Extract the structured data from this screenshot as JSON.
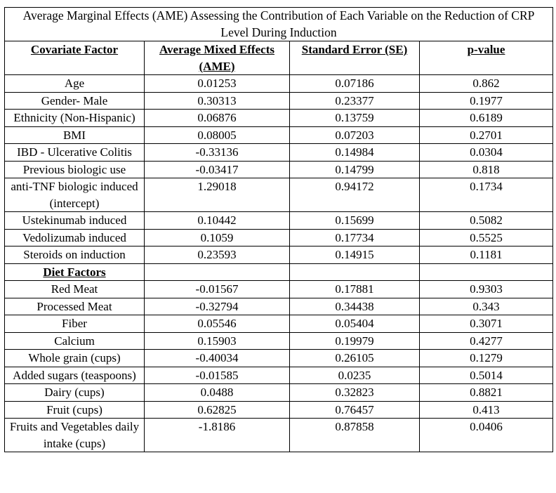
{
  "table": {
    "title": "Average Marginal Effects (AME) Assessing the Contribution of Each Variable on the Reduction of CRP Level During Induction",
    "headers": [
      "Covariate Factor",
      "Average Mixed Effects (AME)",
      "Standard Error (SE)",
      "p-value"
    ],
    "rows": [
      {
        "factor": "Age",
        "ame": "0.01253",
        "se": "0.07186",
        "p": "0.862"
      },
      {
        "factor": "Gender- Male",
        "ame": "0.30313",
        "se": "0.23377",
        "p": "0.1977"
      },
      {
        "factor": "Ethnicity (Non-Hispanic)",
        "ame": "0.06876",
        "se": "0.13759",
        "p": "0.6189"
      },
      {
        "factor": "BMI",
        "ame": "0.08005",
        "se": "0.07203",
        "p": "0.2701"
      },
      {
        "factor": "IBD - Ulcerative Colitis",
        "ame": "-0.33136",
        "se": "0.14984",
        "p": "0.0304"
      },
      {
        "factor": "Previous biologic use",
        "ame": "-0.03417",
        "se": "0.14799",
        "p": "0.818"
      },
      {
        "factor": "anti-TNF biologic induced (intercept)",
        "ame": "1.29018",
        "se": "0.94172",
        "p": "0.1734"
      },
      {
        "factor": "Ustekinumab induced",
        "ame": "0.10442",
        "se": "0.15699",
        "p": "0.5082"
      },
      {
        "factor": "Vedolizumab induced",
        "ame": "0.1059",
        "se": "0.17734",
        "p": "0.5525"
      },
      {
        "factor": "Steroids on induction",
        "ame": "0.23593",
        "se": "0.14915",
        "p": "0.1181"
      },
      {
        "factor": "Diet Factors",
        "ame": "",
        "se": "",
        "p": "",
        "section": true
      },
      {
        "factor": "Red Meat",
        "ame": "-0.01567",
        "se": "0.17881",
        "p": "0.9303"
      },
      {
        "factor": "Processed Meat",
        "ame": "-0.32794",
        "se": "0.34438",
        "p": "0.343"
      },
      {
        "factor": "Fiber",
        "ame": "0.05546",
        "se": "0.05404",
        "p": "0.3071"
      },
      {
        "factor": "Calcium",
        "ame": "0.15903",
        "se": "0.19979",
        "p": "0.4277"
      },
      {
        "factor": "Whole grain (cups)",
        "ame": "-0.40034",
        "se": "0.26105",
        "p": "0.1279"
      },
      {
        "factor": "Added sugars (teaspoons)",
        "ame": "-0.01585",
        "se": "0.0235",
        "p": "0.5014"
      },
      {
        "factor": "Dairy (cups)",
        "ame": "0.0488",
        "se": "0.32823",
        "p": "0.8821"
      },
      {
        "factor": "Fruit (cups)",
        "ame": "0.62825",
        "se": "0.76457",
        "p": "0.413"
      },
      {
        "factor": "Fruits and Vegetables daily intake (cups)",
        "ame": "-1.8186",
        "se": "0.87858",
        "p": "0.0406"
      }
    ]
  }
}
